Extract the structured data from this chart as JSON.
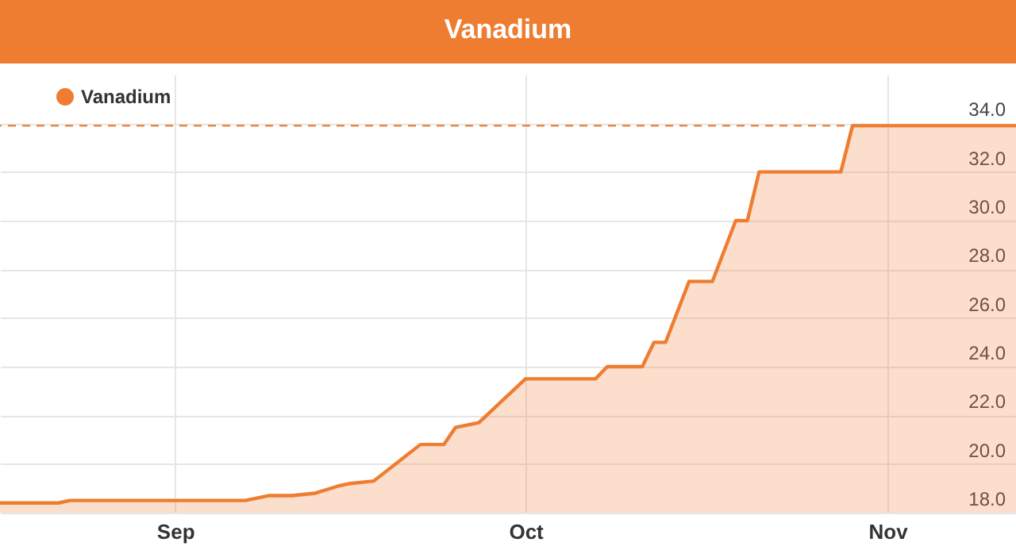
{
  "chart_data": {
    "type": "area",
    "title": "Vanadium",
    "x": [
      "--08-17",
      "--08-22",
      "--08-23",
      "--09-07",
      "--09-09",
      "--09-11",
      "--09-13",
      "--09-15",
      "--09-16",
      "--09-18",
      "--09-22",
      "--09-24",
      "--09-25",
      "--09-27",
      "--10-01",
      "--10-07",
      "--10-08",
      "--10-11",
      "--10-12",
      "--10-13",
      "--10-15",
      "--10-17",
      "--10-19",
      "--10-20",
      "--10-21",
      "--10-28",
      "--10-29",
      "--11-12"
    ],
    "series": [
      {
        "name": "Vanadium",
        "color": "#ee7d31",
        "values": [
          18.4,
          18.4,
          18.5,
          18.5,
          18.7,
          18.7,
          18.8,
          19.1,
          19.2,
          19.3,
          20.8,
          20.8,
          21.5,
          21.7,
          23.5,
          23.5,
          24.0,
          24.0,
          25.0,
          25.0,
          27.5,
          27.5,
          30.0,
          30.0,
          32.0,
          32.0,
          33.9,
          33.9
        ]
      }
    ],
    "xlim": [
      "--08-17",
      "--11-12"
    ],
    "xticks": [
      {
        "value": "--09-01",
        "label": "Sep"
      },
      {
        "value": "--10-01",
        "label": "Oct"
      },
      {
        "value": "--11-01",
        "label": "Nov"
      }
    ],
    "ylim": [
      18,
      36
    ],
    "yticks": [
      {
        "value": 18,
        "label": "18.0"
      },
      {
        "value": 20,
        "label": "20.0"
      },
      {
        "value": 22,
        "label": "22.0"
      },
      {
        "value": 24,
        "label": "24.0"
      },
      {
        "value": 26,
        "label": "26.0"
      },
      {
        "value": 28,
        "label": "28.0"
      },
      {
        "value": 30,
        "label": "30.0"
      },
      {
        "value": 32,
        "label": "32.0"
      },
      {
        "value": 34,
        "label": "34.0"
      }
    ],
    "grid": true,
    "legend": "top left",
    "ref_lines": [
      {
        "axis": "y",
        "value": 33.9,
        "color": "#ee7d31",
        "line_style": "dashed"
      }
    ]
  }
}
